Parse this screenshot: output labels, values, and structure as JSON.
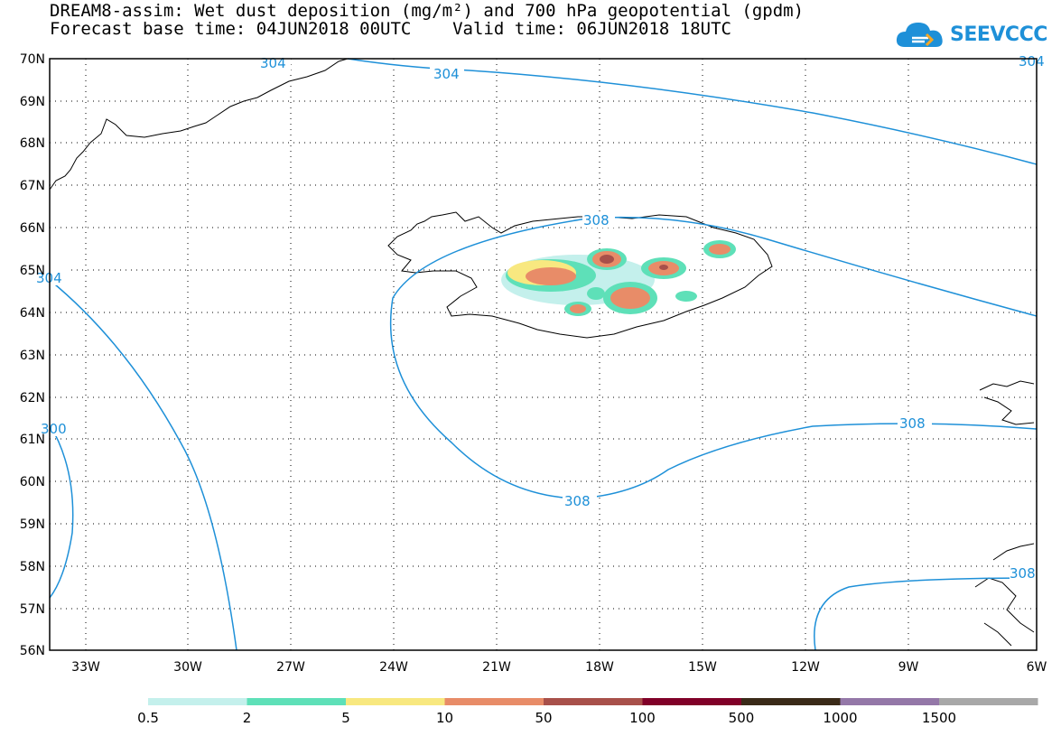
{
  "title": {
    "line1": "DREAM8-assim: Wet dust deposition (mg/m²) and 700 hPa geopotential (gpdm)",
    "line2": "Forecast base time: 04JUN2018 00UTC    Valid time: 06JUN2018 18UTC"
  },
  "logo": {
    "text": "SEEVCCC",
    "icon": "cloud-icon",
    "color": "#1e90d8"
  },
  "map": {
    "lat_labels": [
      "70N",
      "69N",
      "68N",
      "67N",
      "66N",
      "65N",
      "64N",
      "63N",
      "62N",
      "61N",
      "60N",
      "59N",
      "58N",
      "57N",
      "56N"
    ],
    "lon_labels": [
      "33W",
      "30W",
      "27W",
      "24W",
      "21W",
      "18W",
      "15W",
      "12W",
      "9W",
      "6W"
    ],
    "contour_labels": [
      "304",
      "304",
      "304",
      "304",
      "308",
      "308",
      "308",
      "308",
      "300"
    ],
    "contour_color": "#1e90d8"
  },
  "legend": {
    "colors": [
      "#c4f0ec",
      "#5ee0b8",
      "#f8e880",
      "#e88c68",
      "#a8504a",
      "#800028",
      "#3a2a18",
      "#9478a8",
      "#a8a8a8"
    ],
    "labels": [
      "0.5",
      "2",
      "5",
      "10",
      "50",
      "100",
      "500",
      "1000",
      "1500"
    ]
  }
}
